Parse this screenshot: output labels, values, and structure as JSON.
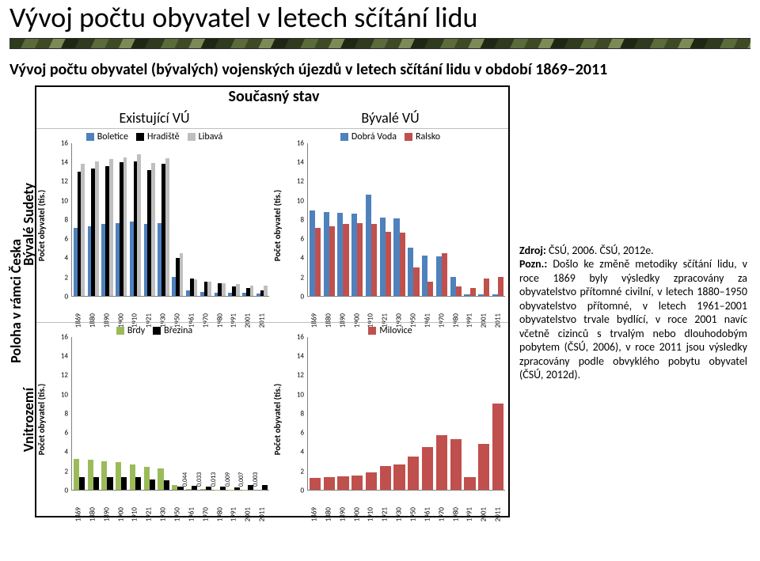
{
  "title": "Vývoj počtu obyvatel v letech sčítání lidu",
  "subtitle": "Vývoj počtu obyvatel (bývalých) vojenských újezdů v letech sčítání lidu v období 1869–2011",
  "headers": {
    "super": "Současný stav",
    "col_left": "Existující VÚ",
    "col_right": "Bývalé VÚ",
    "row_outer": "Poloha v rámci Česka",
    "row_top": "Bývalé Sudety",
    "row_bottom": "Vnitrozemí"
  },
  "source_label": "Zdroj:",
  "source_text": "ČSÚ, 2006. ČSÚ, 2012e.",
  "note_label": "Pozn.:",
  "note_text": "Došlo ke změně metodiky sčítání lidu, v roce 1869 byly výsledky zpracovány za obyvatelstvo přítomné civilní, v letech 1880–1950 obyvatelstvo přítomné, v letech 1961–2001 obyvatelstvo trvale bydlící, v roce 2001 navíc včetně cizinců s trvalým nebo dlouhodobým pobytem (ČSÚ, 2006), v roce 2011 jsou výsledky zpracovány podle obvyklého pobytu obyvatel (ČSÚ, 2012d).",
  "years": [
    "1869",
    "1880",
    "1890",
    "1900",
    "1910",
    "1921",
    "1930",
    "1950",
    "1961",
    "1970",
    "1980",
    "1991",
    "2001",
    "2011"
  ],
  "ylabel": "Počet obyvatel (tis.)",
  "ymax": 16,
  "ytick_step": 2,
  "label_fontsize": 11,
  "tick_fontsize": 9,
  "background_color": "#ffffff",
  "axis_color": "#808080",
  "charts": {
    "top_left": {
      "series_names": [
        "Boletice",
        "Hradiště",
        "Libavá"
      ],
      "series_colors": [
        "#4f81bd",
        "#000000",
        "#bfbfbf"
      ],
      "values": [
        [
          7.1,
          7.3,
          7.5,
          7.6,
          7.8,
          7.5,
          7.6,
          2.0,
          0.6,
          0.4,
          0.3,
          0.3,
          0.3,
          0.27
        ],
        [
          13.0,
          13.3,
          13.6,
          14.0,
          14.1,
          13.2,
          13.8,
          4.0,
          1.8,
          1.5,
          1.3,
          1.0,
          0.8,
          0.6
        ],
        [
          13.8,
          14.1,
          14.3,
          14.5,
          14.8,
          13.9,
          14.4,
          4.5,
          1.7,
          1.5,
          1.3,
          1.2,
          1.1,
          1.1
        ]
      ]
    },
    "top_right": {
      "series_names": [
        "Dobrá Voda",
        "Ralsko"
      ],
      "series_colors": [
        "#4f81bd",
        "#c0504d"
      ],
      "values": [
        [
          8.9,
          8.8,
          8.7,
          8.6,
          10.6,
          8.2,
          8.1,
          5.0,
          4.2,
          4.1,
          2.0,
          0.15,
          0.18,
          0.16
        ],
        [
          7.1,
          7.3,
          7.5,
          7.6,
          7.5,
          6.7,
          6.6,
          3.0,
          1.5,
          4.5,
          1.0,
          0.8,
          1.8,
          2.0
        ]
      ]
    },
    "bottom_left": {
      "series_names": [
        "Brdy",
        "Březina"
      ],
      "series_colors": [
        "#9bbb59",
        "#000000"
      ],
      "values": [
        [
          3.2,
          3.1,
          3.0,
          2.9,
          2.6,
          2.4,
          2.2,
          0.5,
          0.044,
          0.033,
          0.013,
          0.009,
          0.007,
          0.003
        ],
        [
          1.3,
          1.3,
          1.3,
          1.3,
          1.3,
          1.1,
          1.0,
          0.3,
          0.4,
          0.3,
          0.3,
          0.2,
          0.5,
          0.5
        ]
      ],
      "annotations": [
        {
          "year_idx": 8,
          "text": "0,044"
        },
        {
          "year_idx": 9,
          "text": "0,033"
        },
        {
          "year_idx": 10,
          "text": "0,013"
        },
        {
          "year_idx": 11,
          "text": "0,009"
        },
        {
          "year_idx": 12,
          "text": "0,007"
        },
        {
          "year_idx": 13,
          "text": "0,003"
        }
      ]
    },
    "bottom_right": {
      "series_names": [
        "Milovice"
      ],
      "series_colors": [
        "#c0504d"
      ],
      "values": [
        [
          1.2,
          1.3,
          1.4,
          1.5,
          1.8,
          2.5,
          2.6,
          3.5,
          4.5,
          5.7,
          5.3,
          1.3,
          4.8,
          9.0
        ]
      ]
    }
  }
}
